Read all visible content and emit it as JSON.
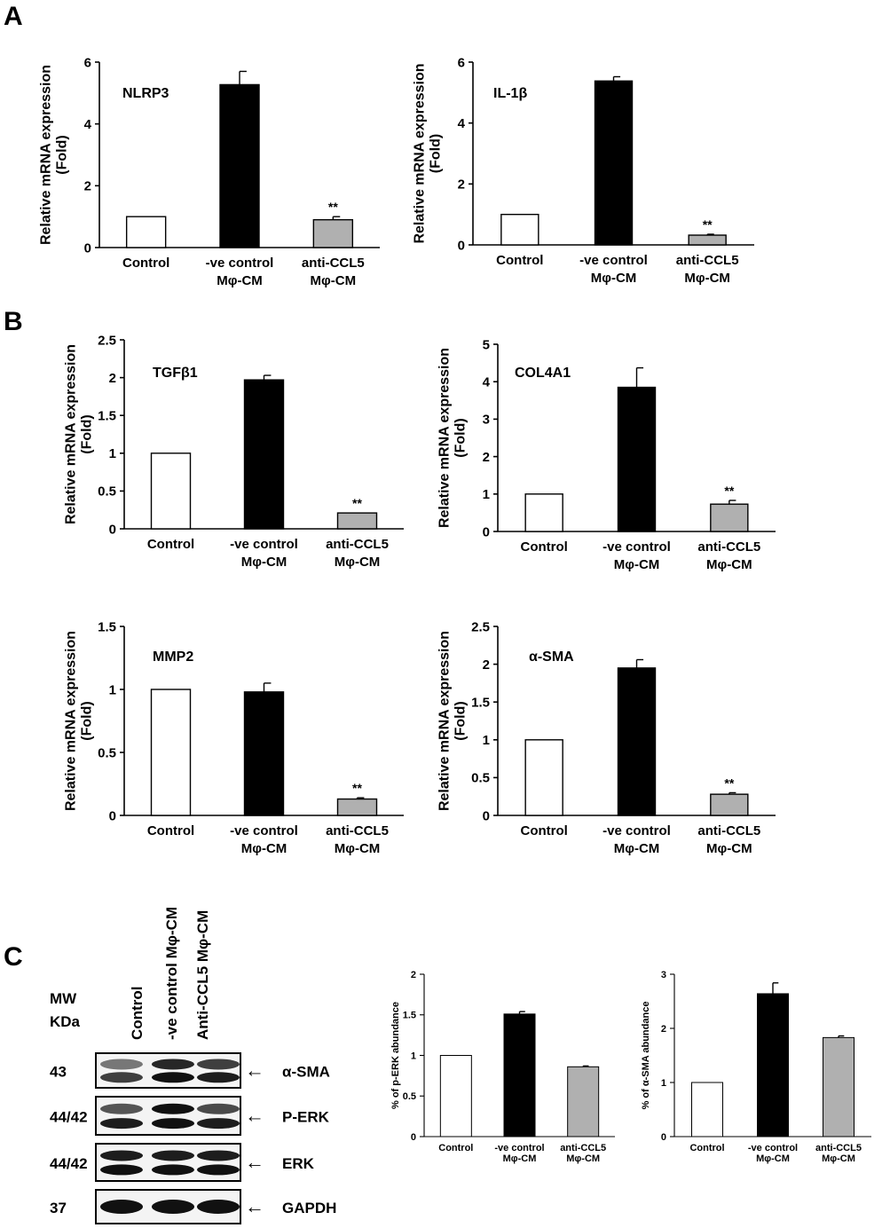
{
  "panels": {
    "a": "A",
    "b": "B",
    "c": "C"
  },
  "chart_data": [
    {
      "id": "nlrp3",
      "type": "bar",
      "annotation": "NLRP3",
      "ylabel": [
        "Relative mRNA expression",
        "(Fold)"
      ],
      "categories": [
        [
          "Control"
        ],
        [
          "-ve control",
          "Mφ-CM"
        ],
        [
          "anti-CCL5",
          "Mφ-CM"
        ]
      ],
      "values": [
        1.0,
        5.27,
        0.9
      ],
      "errors": [
        0,
        0.43,
        0.1
      ],
      "significance": [
        "",
        "",
        "**"
      ],
      "bar_colors": [
        "#ffffff",
        "#000000",
        "#b0b0b0"
      ],
      "ylim": [
        0,
        6
      ],
      "yticks": [
        0,
        2,
        4,
        6
      ],
      "ytick_labels": [
        "0",
        "2",
        "4",
        "6"
      ]
    },
    {
      "id": "il1b",
      "type": "bar",
      "annotation": "IL-1β",
      "ylabel": [
        "Relative mRNA expression",
        "(Fold)"
      ],
      "categories": [
        [
          "Control"
        ],
        [
          "-ve control",
          "Mφ-CM"
        ],
        [
          "anti-CCL5",
          "Mφ-CM"
        ]
      ],
      "values": [
        1.0,
        5.38,
        0.32
      ],
      "errors": [
        0,
        0.14,
        0.03
      ],
      "significance": [
        "",
        "",
        "**"
      ],
      "bar_colors": [
        "#ffffff",
        "#000000",
        "#b0b0b0"
      ],
      "ylim": [
        0,
        6
      ],
      "yticks": [
        0,
        2,
        4,
        6
      ],
      "ytick_labels": [
        "0",
        "2",
        "4",
        "6"
      ]
    },
    {
      "id": "tgfb1",
      "type": "bar",
      "annotation": "TGFβ1",
      "ylabel": [
        "Relative mRNA expression",
        "(Fold)"
      ],
      "categories": [
        [
          "Control"
        ],
        [
          "-ve control",
          "Mφ-CM"
        ],
        [
          "anti-CCL5",
          "Mφ-CM"
        ]
      ],
      "values": [
        1.0,
        1.97,
        0.21
      ],
      "errors": [
        0,
        0.06,
        0.0
      ],
      "significance": [
        "",
        "",
        "**"
      ],
      "bar_colors": [
        "#ffffff",
        "#000000",
        "#b0b0b0"
      ],
      "ylim": [
        0,
        2.5
      ],
      "yticks": [
        0,
        0.5,
        1,
        1.5,
        2,
        2.5
      ],
      "ytick_labels": [
        "0",
        "0.5",
        "1",
        "1.5",
        "2",
        "2.5"
      ]
    },
    {
      "id": "col4a1",
      "type": "bar",
      "annotation": "COL4A1",
      "ylabel": [
        "Relative mRNA expression",
        "(Fold)"
      ],
      "categories": [
        [
          "Control"
        ],
        [
          "-ve control",
          "Mφ-CM"
        ],
        [
          "anti-CCL5",
          "Mφ-CM"
        ]
      ],
      "values": [
        1.0,
        3.85,
        0.73
      ],
      "errors": [
        0,
        0.52,
        0.1
      ],
      "significance": [
        "",
        "",
        "**"
      ],
      "bar_colors": [
        "#ffffff",
        "#000000",
        "#b0b0b0"
      ],
      "ylim": [
        0,
        5
      ],
      "yticks": [
        0,
        1,
        2,
        3,
        4,
        5
      ],
      "ytick_labels": [
        "0",
        "1",
        "2",
        "3",
        "4",
        "5"
      ]
    },
    {
      "id": "mmp2",
      "type": "bar",
      "annotation": "MMP2",
      "ylabel": [
        "Relative mRNA expression",
        "(Fold)"
      ],
      "categories": [
        [
          "Control"
        ],
        [
          "-ve control",
          "Mφ-CM"
        ],
        [
          "anti-CCL5",
          "Mφ-CM"
        ]
      ],
      "values": [
        1.0,
        0.98,
        0.13
      ],
      "errors": [
        0,
        0.07,
        0.01
      ],
      "significance": [
        "",
        "",
        "**"
      ],
      "bar_colors": [
        "#ffffff",
        "#000000",
        "#b0b0b0"
      ],
      "ylim": [
        0,
        1.5
      ],
      "yticks": [
        0,
        0.5,
        1,
        1.5
      ],
      "ytick_labels": [
        "0",
        "0.5",
        "1",
        "1.5"
      ]
    },
    {
      "id": "asma",
      "type": "bar",
      "annotation": "α-SMA",
      "ylabel": [
        "Relative mRNA expression",
        "(Fold)"
      ],
      "categories": [
        [
          "Control"
        ],
        [
          "-ve control",
          "Mφ-CM"
        ],
        [
          "anti-CCL5",
          "Mφ-CM"
        ]
      ],
      "values": [
        1.0,
        1.95,
        0.28
      ],
      "errors": [
        0,
        0.11,
        0.02
      ],
      "significance": [
        "",
        "",
        "**"
      ],
      "bar_colors": [
        "#ffffff",
        "#000000",
        "#b0b0b0"
      ],
      "ylim": [
        0,
        2.5
      ],
      "yticks": [
        0,
        0.5,
        1,
        1.5,
        2,
        2.5
      ],
      "ytick_labels": [
        "0",
        "0.5",
        "1",
        "1.5",
        "2",
        "2.5"
      ]
    },
    {
      "id": "perk",
      "type": "bar",
      "annotation": "",
      "ylabel": [
        "% of p-ERK abundance"
      ],
      "categories": [
        [
          "Control"
        ],
        [
          "-ve control",
          "Mφ-CM"
        ],
        [
          "anti-CCL5",
          "Mφ-CM"
        ]
      ],
      "values": [
        1.0,
        1.51,
        0.86
      ],
      "errors": [
        0,
        0.03,
        0.01
      ],
      "significance": [
        "",
        "",
        ""
      ],
      "bar_colors": [
        "#ffffff",
        "#000000",
        "#b0b0b0"
      ],
      "ylim": [
        0,
        2
      ],
      "yticks": [
        0,
        0.5,
        1,
        1.5,
        2
      ],
      "ytick_labels": [
        "0",
        "0.5",
        "1",
        "1.5",
        "2"
      ]
    },
    {
      "id": "asma-abundance",
      "type": "bar",
      "annotation": "",
      "ylabel": [
        "% of α-SMA abundance"
      ],
      "categories": [
        [
          "Control"
        ],
        [
          "-ve control",
          "Mφ-CM"
        ],
        [
          "anti-CCL5",
          "Mφ-CM"
        ]
      ],
      "values": [
        1.0,
        2.64,
        1.83
      ],
      "errors": [
        0,
        0.2,
        0.03
      ],
      "significance": [
        "",
        "",
        ""
      ],
      "bar_colors": [
        "#ffffff",
        "#000000",
        "#b0b0b0"
      ],
      "ylim": [
        0,
        3
      ],
      "yticks": [
        0,
        1,
        2,
        3
      ],
      "ytick_labels": [
        "0",
        "1",
        "2",
        "3"
      ]
    }
  ],
  "blot": {
    "mw_header": [
      "MW",
      "KDa"
    ],
    "lanes": [
      "Control",
      "-ve control Mφ-CM",
      "Anti-CCL5 Mφ-CM"
    ],
    "rows": [
      {
        "mw": "43",
        "label": "α-SMA"
      },
      {
        "mw": "44/42",
        "label": "P-ERK"
      },
      {
        "mw": "44/42",
        "label": "ERK"
      },
      {
        "mw": "37",
        "label": "GAPDH"
      }
    ],
    "arrow": "←"
  }
}
